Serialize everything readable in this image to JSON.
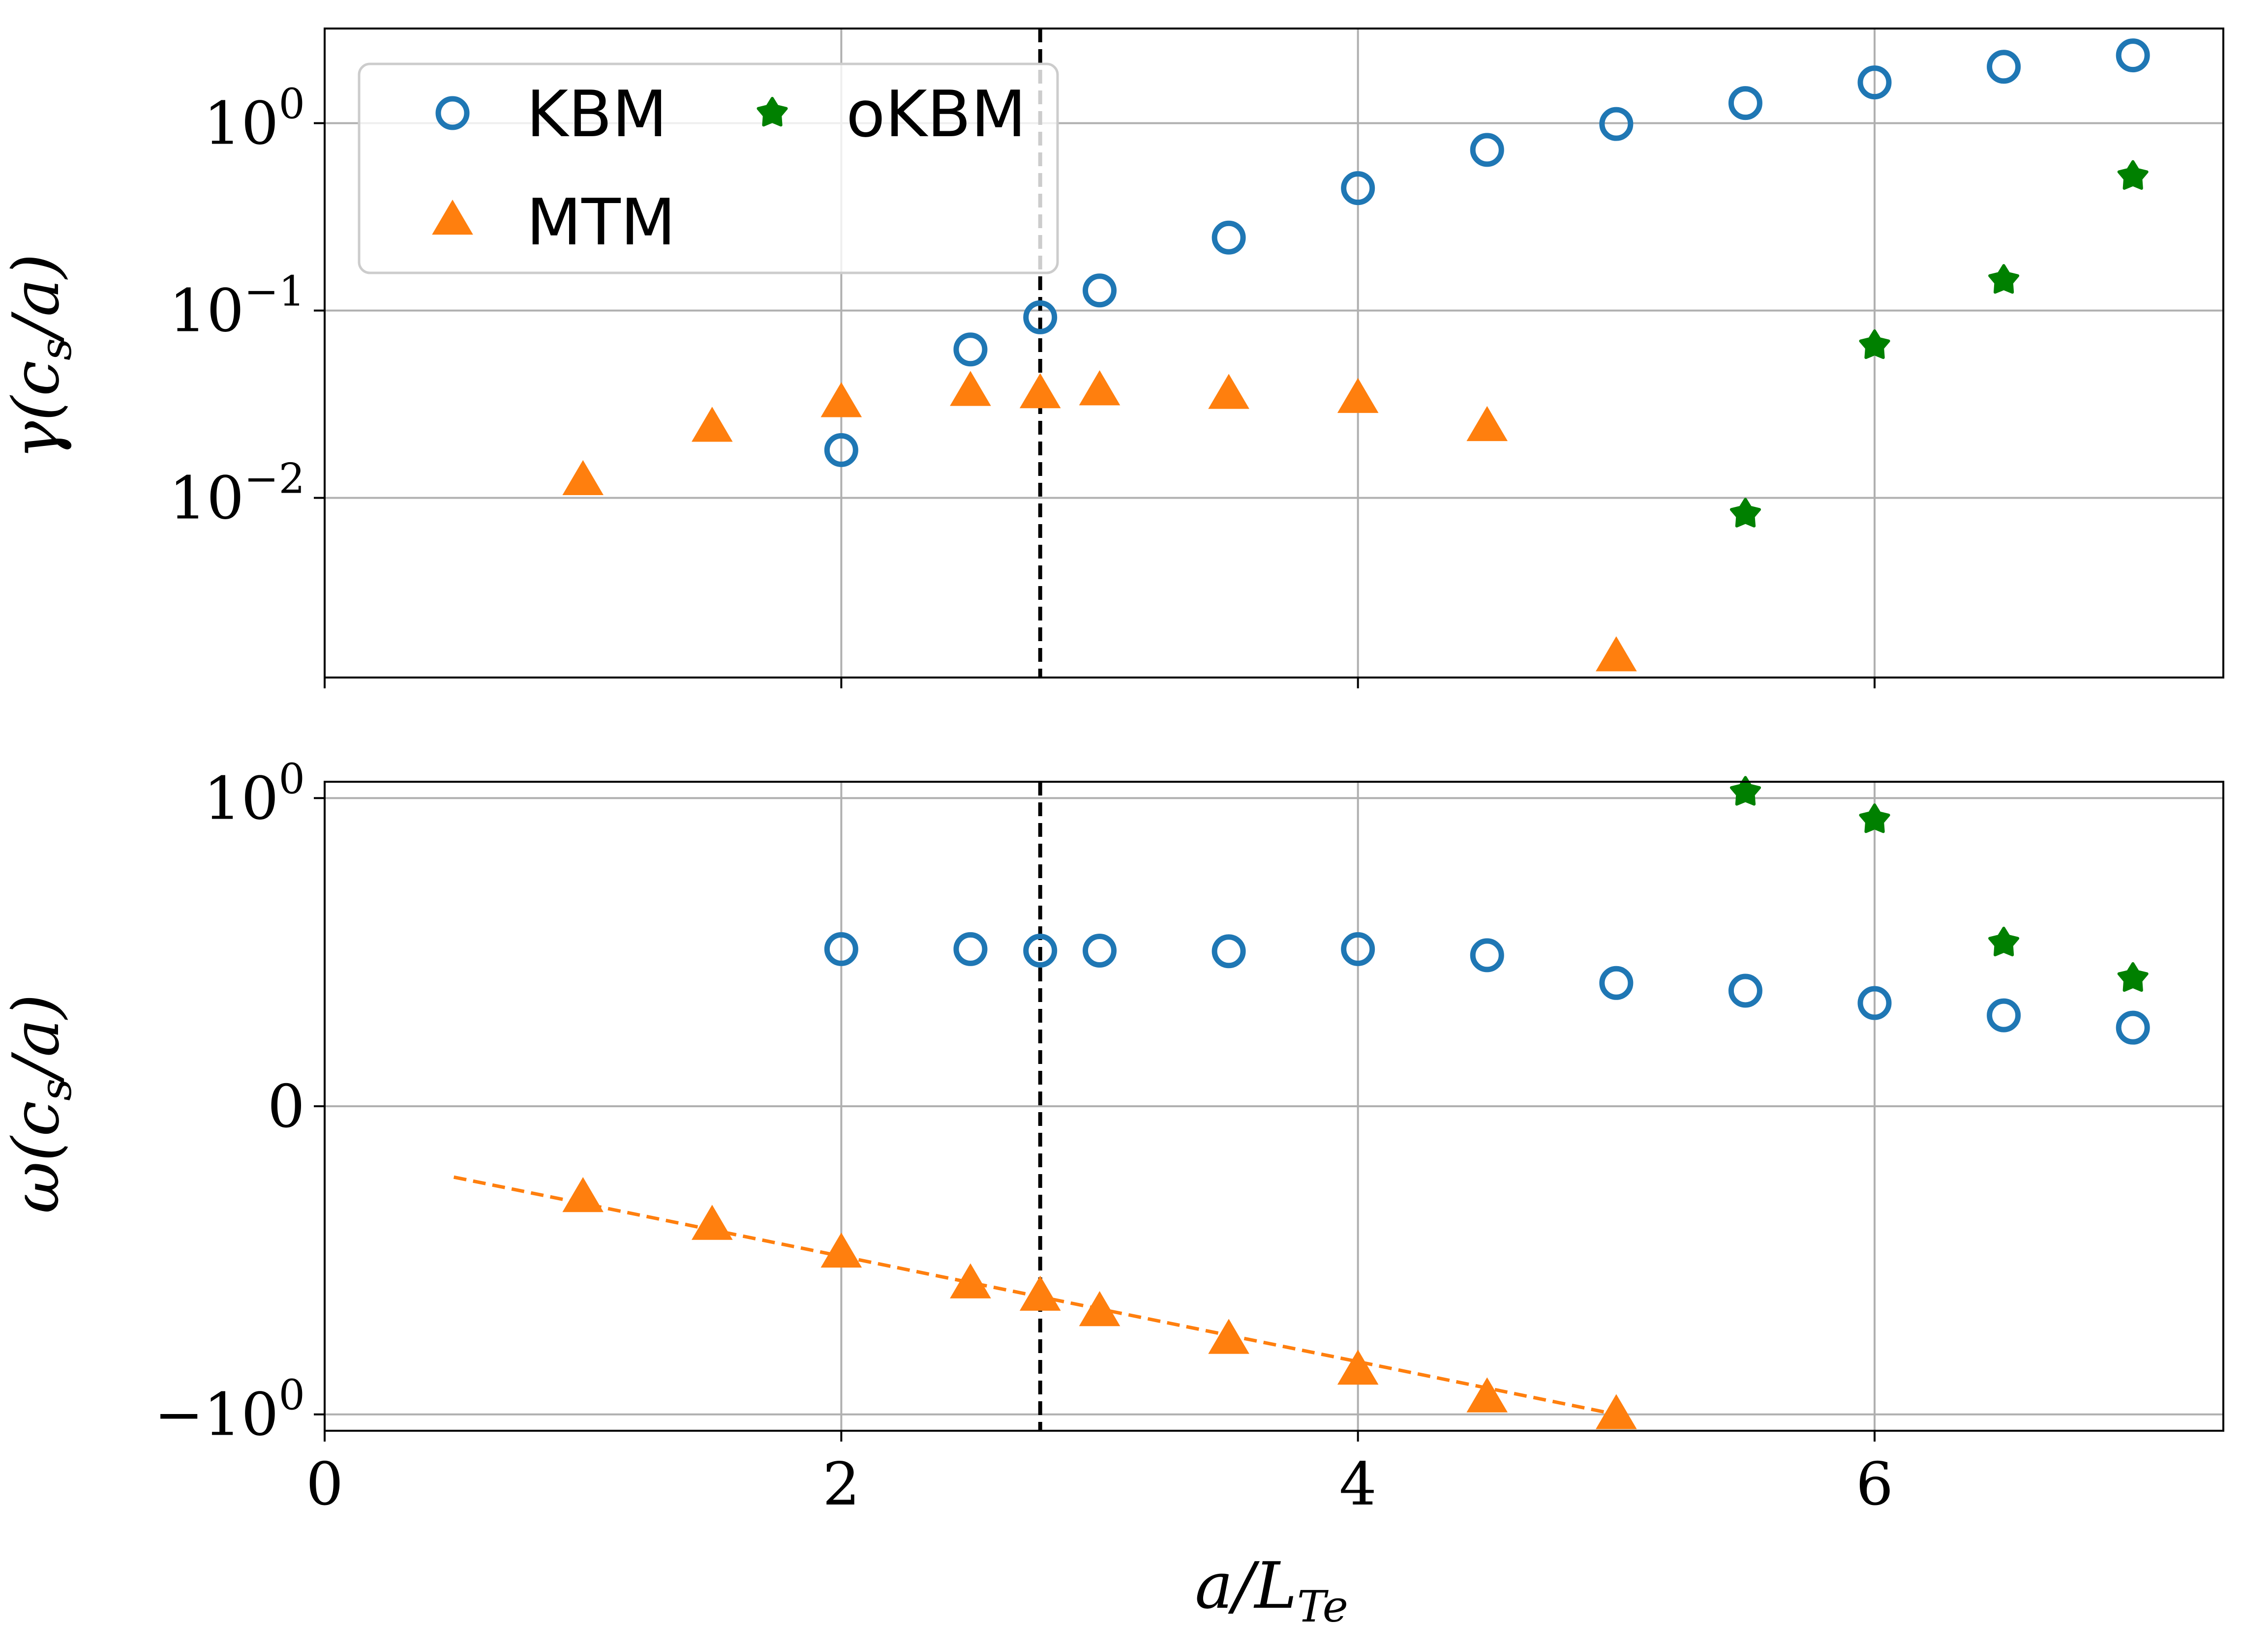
{
  "chart_data": [
    {
      "type": "scatter",
      "panel": "top",
      "title": "",
      "xlabel": "",
      "ylabel": "γ(c_s/a)",
      "ylabel_display": {
        "pre": "γ(c",
        "sub": "s",
        "post": "/a)"
      },
      "yscale": "log",
      "xlim": [
        0,
        7.35
      ],
      "ylim": [
        0.0011,
        3.2
      ],
      "grid": true,
      "yticks": [
        {
          "value": 1,
          "base": "10",
          "exp": "0"
        },
        {
          "value": 0.1,
          "base": "10",
          "exp": "−1"
        },
        {
          "value": 0.01,
          "base": "10",
          "exp": "−2"
        }
      ],
      "vline": 2.77,
      "legend": {
        "position": "top-left",
        "entries": [
          {
            "label": "KBM",
            "series": "KBM"
          },
          {
            "label": "oKBM",
            "series": "oKBM"
          },
          {
            "label": "MTM",
            "series": "MTM"
          }
        ]
      },
      "series": [
        {
          "name": "KBM",
          "marker": "circle",
          "color": "#1f77b4",
          "x": [
            2,
            2.5,
            2.77,
            3,
            3.5,
            4,
            4.5,
            5,
            5.5,
            6,
            6.5,
            7
          ],
          "y": [
            0.018,
            0.062,
            0.092,
            0.128,
            0.245,
            0.45,
            0.72,
            0.99,
            1.28,
            1.65,
            2.0,
            2.3
          ]
        },
        {
          "name": "MTM",
          "marker": "triangle",
          "color": "#ff7f0e",
          "x": [
            1,
            1.5,
            2,
            2.5,
            2.77,
            3,
            3.5,
            4,
            4.5,
            5
          ],
          "y": [
            0.0122,
            0.0235,
            0.0318,
            0.0365,
            0.0355,
            0.0368,
            0.0352,
            0.0335,
            0.0237,
            0.0014
          ]
        },
        {
          "name": "oKBM",
          "marker": "star",
          "color": "#008000",
          "x": [
            5.5,
            6,
            6.5,
            7
          ],
          "y": [
            0.0082,
            0.065,
            0.145,
            0.52
          ]
        }
      ]
    },
    {
      "type": "scatter",
      "panel": "bottom",
      "title": "",
      "xlabel": "a/L_Te",
      "xlabel_display": {
        "pre": "a/L",
        "sub": "Te"
      },
      "ylabel": "ω(c_s/a)",
      "ylabel_display": {
        "pre": "ω(c",
        "sub": "s",
        "post": "/a)"
      },
      "yscale": "symlog",
      "xlim": [
        0,
        7.35
      ],
      "ylim": [
        -1.13,
        1.13
      ],
      "grid": true,
      "xticks": [
        {
          "value": 0,
          "label": "0"
        },
        {
          "value": 2,
          "label": "2"
        },
        {
          "value": 4,
          "label": "4"
        },
        {
          "value": 6,
          "label": "6"
        }
      ],
      "yticks": [
        {
          "value": 1,
          "base": "10",
          "exp": "0",
          "sign": ""
        },
        {
          "value": 0,
          "base": "0",
          "exp": "",
          "sign": ""
        },
        {
          "value": -1,
          "base": "10",
          "exp": "0",
          "sign": "−"
        }
      ],
      "vline": 2.77,
      "fit_line": {
        "color": "#ff7f0e",
        "x": [
          0.5,
          5.0
        ],
        "y": [
          -0.23,
          -1.0
        ]
      },
      "series": [
        {
          "name": "KBM",
          "marker": "circle",
          "color": "#1f77b4",
          "x": [
            2,
            2.5,
            2.77,
            3,
            3.5,
            4,
            4.5,
            5,
            5.5,
            6,
            6.5,
            7
          ],
          "y": [
            0.51,
            0.51,
            0.505,
            0.505,
            0.503,
            0.51,
            0.49,
            0.4,
            0.375,
            0.335,
            0.295,
            0.255
          ]
        },
        {
          "name": "MTM",
          "marker": "triangle",
          "color": "#ff7f0e",
          "x": [
            1,
            1.5,
            2,
            2.5,
            2.77,
            3,
            3.5,
            4,
            4.5,
            5
          ],
          "y": [
            -0.3,
            -0.39,
            -0.48,
            -0.58,
            -0.62,
            -0.67,
            -0.76,
            -0.86,
            -0.95,
            -1.01
          ]
        },
        {
          "name": "oKBM",
          "marker": "star",
          "color": "#008000",
          "x": [
            5.5,
            6,
            6.5,
            7
          ],
          "y": [
            1.045,
            0.93,
            0.53,
            0.415
          ]
        }
      ]
    }
  ]
}
